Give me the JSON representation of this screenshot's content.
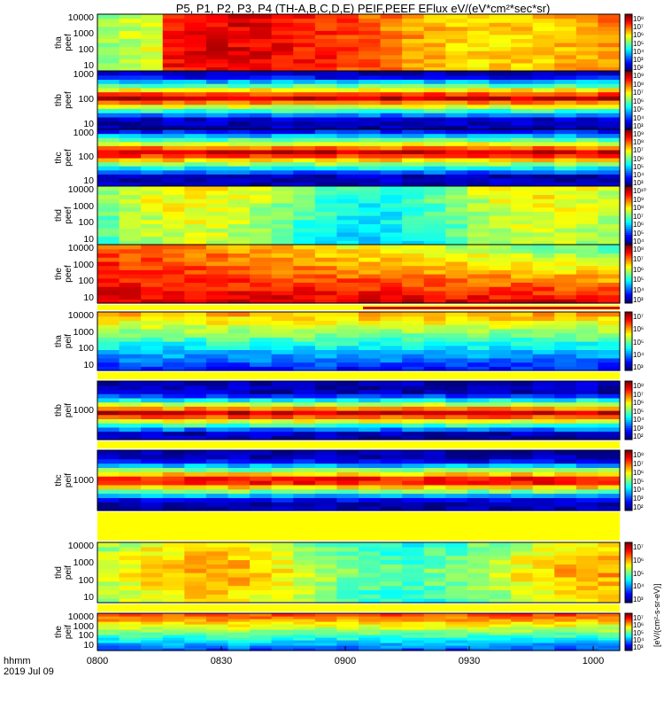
{
  "title": "P5, P1, P2, P3, P4 (TH-A,B,C,D,E) PEIF,PEEF EFlux eV/(eV*cm²*sec*sr)",
  "x_axis_label": "hhmm",
  "date_label": "2019 Jul 09",
  "chart_data": {
    "type": "heatmap",
    "x_ticks": [
      "0800",
      "0830",
      "0900",
      "0930",
      "1000"
    ],
    "x_range": [
      "0800",
      "1000"
    ],
    "colorbar_unit": "eV/(cm²-s-sr-eV)",
    "panels": [
      {
        "probe": "tha",
        "species": "peef",
        "y_ticks": [
          "10000",
          "1000",
          "100",
          "10"
        ],
        "cb_ticks": [
          "10⁸",
          "10⁷",
          "10⁶",
          "10⁵",
          "10⁴",
          "10³",
          "10²"
        ],
        "data_gap": false
      },
      {
        "probe": "thb",
        "species": "peef",
        "y_ticks": [
          "1000",
          "100",
          "10"
        ],
        "cb_ticks": [
          "10⁹",
          "10⁸",
          "10⁷",
          "10⁶",
          "10⁵",
          "10⁴",
          "10³"
        ],
        "data_gap": false
      },
      {
        "probe": "thc",
        "species": "peef",
        "y_ticks": [
          "1000",
          "100",
          "10"
        ],
        "cb_ticks": [
          "10⁹",
          "10⁸",
          "10⁷",
          "10⁶",
          "10⁵",
          "10⁴",
          "10³"
        ],
        "data_gap": false
      },
      {
        "probe": "thd",
        "species": "peef",
        "y_ticks": [
          "10000",
          "1000",
          "100",
          "10"
        ],
        "cb_ticks": [
          "10¹⁰",
          "10⁹",
          "10⁸",
          "10⁷",
          "10⁶",
          "10⁵",
          "10⁴"
        ],
        "data_gap": false
      },
      {
        "probe": "the",
        "species": "peef",
        "y_ticks": [
          "10000",
          "1000",
          "100",
          "10"
        ],
        "cb_ticks": [
          "10⁸",
          "10⁷",
          "10⁶",
          "10⁵",
          "10⁴",
          "10³"
        ],
        "data_gap": false
      },
      {
        "probe": "tha",
        "species": "peif",
        "y_ticks": [
          "10000",
          "1000",
          "100",
          "10"
        ],
        "cb_ticks": [
          "10⁷",
          "10⁶",
          "10⁵",
          "10⁴",
          "10³"
        ],
        "data_gap": false
      },
      {
        "probe": "thb",
        "species": "peif",
        "y_ticks": [
          "1000"
        ],
        "cb_ticks": [
          "10⁸",
          "10⁷",
          "10⁶",
          "10⁵",
          "10⁴",
          "10³",
          "10²"
        ],
        "data_gap": false
      },
      {
        "probe": "thc",
        "species": "peif",
        "y_ticks": [
          "1000"
        ],
        "cb_ticks": [
          "10⁸",
          "10⁷",
          "10⁶",
          "10⁵",
          "10⁴",
          "10³",
          "10²"
        ],
        "data_gap": false
      },
      {
        "probe": "thd",
        "species": "peif",
        "y_ticks": [
          "10000",
          "1000",
          "100",
          "10"
        ],
        "cb_ticks": [
          "10⁷",
          "10⁶",
          "10⁵",
          "10⁴",
          "10³"
        ],
        "data_gap": false
      },
      {
        "probe": "the",
        "species": "peif",
        "y_ticks": [
          "10000",
          "1000",
          "100",
          "10"
        ],
        "cb_ticks": [
          "10⁷",
          "10⁶",
          "10⁵",
          "10⁴",
          "10³"
        ],
        "data_gap": false
      }
    ]
  }
}
